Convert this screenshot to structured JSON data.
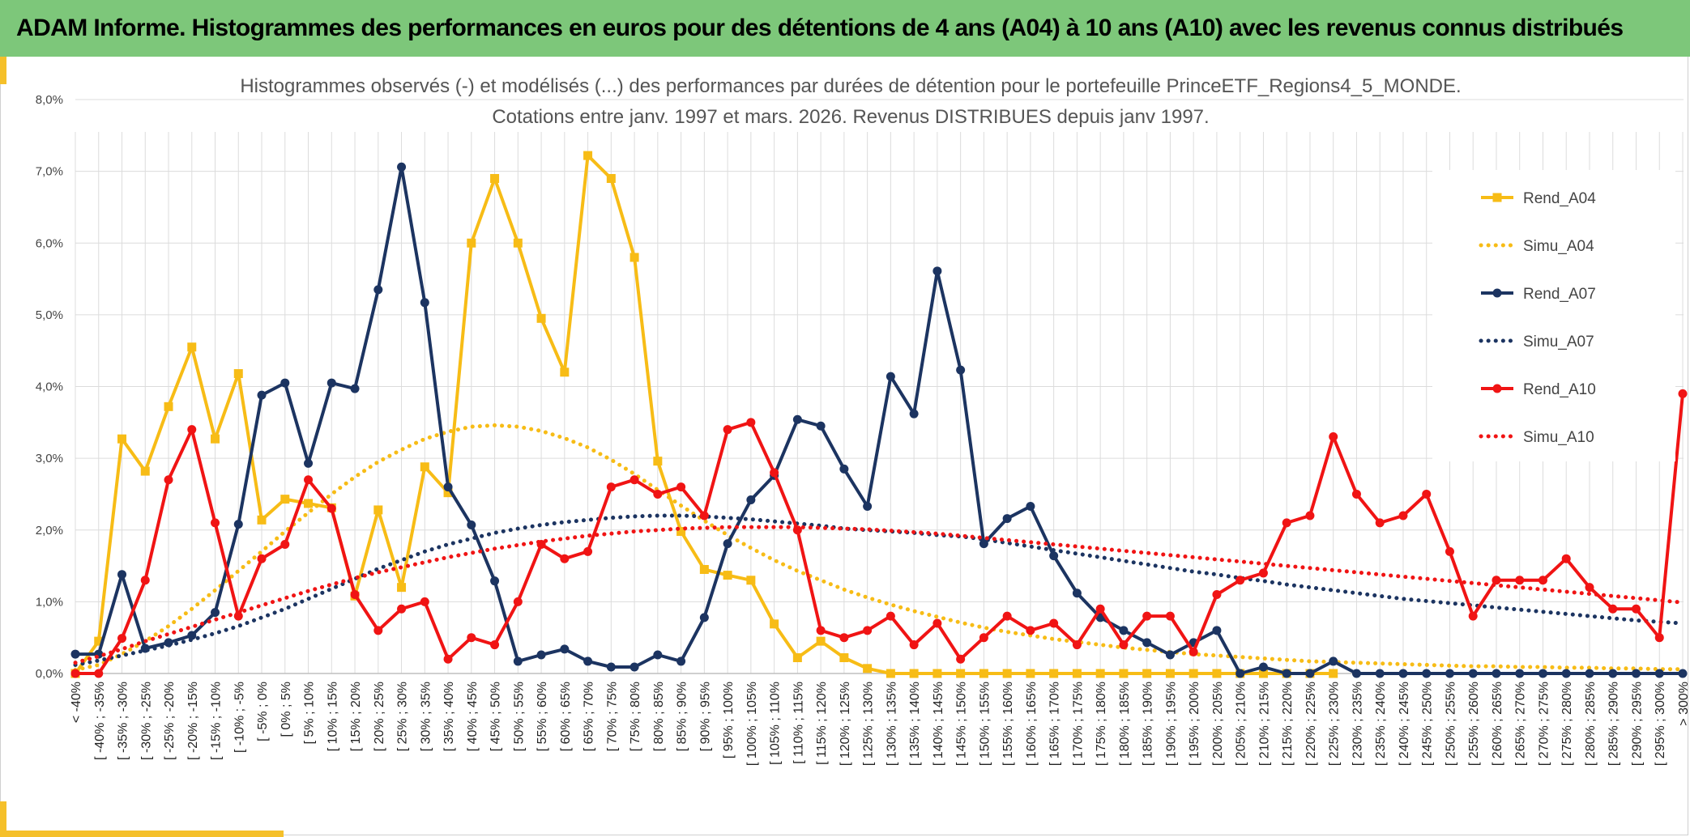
{
  "header": {
    "title": "ADAM Informe. Histogrammes des performances en euros pour des détentions de 4 ans (A04) à 10 ans (A10) avec les revenus connus distribués"
  },
  "colors": {
    "banner": "#7dc77a",
    "accent": "#f5c02a",
    "a04": "#f7bc16",
    "a07": "#1c3461",
    "a10": "#f01414",
    "grid": "#dcdcdc"
  },
  "chart_data": {
    "type": "line",
    "title": "Histogrammes observés (-) et modélisés (...) des performances par durées de détention pour le portefeuille PrinceETF_Regions4_5_MONDE.",
    "subtitle": "Cotations entre janv. 1997 et mars. 2026. Revenus DISTRIBUES depuis janv 1997.",
    "legend_position": "right",
    "grid": true,
    "ylim": [
      0,
      8
    ],
    "y_ticks": [
      0,
      1,
      2,
      3,
      4,
      5,
      6,
      7,
      8
    ],
    "y_tick_labels": [
      "0,0%",
      "1,0%",
      "2,0%",
      "3,0%",
      "4,0%",
      "5,0%",
      "6,0%",
      "7,0%",
      "8,0%"
    ],
    "categories": [
      "< -40%",
      "[ -40% ; -35%",
      "[ -35% ; -30%",
      "[ -30% ; -25%",
      "[ -25% ; -20%",
      "[ -20% ; -15%",
      "[ -15% ; -10%",
      "[ -10% ; -5%",
      "[ -5% ; 0%",
      "[ 0% ; 5%",
      "[ 5% ; 10%",
      "[ 10% ; 15%",
      "[ 15% ; 20%",
      "[ 20% ; 25%",
      "[ 25% ; 30%",
      "[ 30% ; 35%",
      "[ 35% ; 40%",
      "[ 40% ; 45%",
      "[ 45% ; 50%",
      "[ 50% ; 55%",
      "[ 55% ; 60%",
      "[ 60% ; 65%",
      "[ 65% ; 70%",
      "[ 70% ; 75%",
      "[ 75% ; 80%",
      "[ 80% ; 85%",
      "[ 85% ; 90%",
      "[ 90% ; 95%",
      "[ 95% ; 100%",
      "[ 100% ; 105%",
      "[ 105% ; 110%",
      "[ 110% ; 115%",
      "[ 115% ; 120%",
      "[ 120% ; 125%",
      "[ 125% ; 130%",
      "[ 130% ; 135%",
      "[ 135% ; 140%",
      "[ 140% ; 145%",
      "[ 145% ; 150%",
      "[ 150% ; 155%",
      "[ 155% ; 160%",
      "[ 160% ; 165%",
      "[ 165% ; 170%",
      "[ 170% ; 175%",
      "[ 175% ; 180%",
      "[ 180% ; 185%",
      "[ 185% ; 190%",
      "[ 190% ; 195%",
      "[ 195% ; 200%",
      "[ 200% ; 205%",
      "[ 205% ; 210%",
      "[ 210% ; 215%",
      "[ 215% ; 220%",
      "[ 220% ; 225%",
      "[ 225% ; 230%",
      "[ 230% ; 235%",
      "[ 235% ; 240%",
      "[ 240% ; 245%",
      "[ 245% ; 250%",
      "[ 250% ; 255%",
      "[ 255% ; 260%",
      "[ 260% ; 265%",
      "[ 265% ; 270%",
      "[ 270% ; 275%",
      "[ 275% ; 280%",
      "[ 280% ; 285%",
      "[ 285% ; 290%",
      "[ 290% ; 295%",
      "[ 295% ; 300%",
      "> 300%"
    ],
    "series": [
      {
        "name": "Rend_A04",
        "style": "solid",
        "marker": "square",
        "color": "#f7bc16",
        "values": [
          0.0,
          0.45,
          3.27,
          2.82,
          3.72,
          4.55,
          3.27,
          4.18,
          2.14,
          2.43,
          2.37,
          2.31,
          1.08,
          2.28,
          1.2,
          2.88,
          2.52,
          6.0,
          6.9,
          6.0,
          4.95,
          4.2,
          7.22,
          6.9,
          5.8,
          2.96,
          1.98,
          1.45,
          1.37,
          1.3,
          0.69,
          0.22,
          0.45,
          0.22,
          0.07,
          0,
          0,
          0,
          0,
          0,
          0,
          0,
          0,
          0,
          0,
          0,
          0,
          0,
          0,
          0,
          0,
          0,
          0,
          0,
          0,
          null,
          null,
          null,
          null,
          null,
          null,
          null,
          null,
          null,
          null,
          null,
          null,
          null,
          null,
          null
        ]
      },
      {
        "name": "Simu_A04",
        "style": "dotted",
        "color": "#f7bc16",
        "values": [
          0.05,
          0.12,
          0.27,
          0.45,
          0.66,
          0.9,
          1.16,
          1.43,
          1.7,
          1.98,
          2.24,
          2.5,
          2.74,
          2.95,
          3.12,
          3.27,
          3.37,
          3.44,
          3.46,
          3.44,
          3.38,
          3.28,
          3.15,
          2.98,
          2.78,
          2.56,
          2.34,
          2.13,
          1.93,
          1.75,
          1.58,
          1.43,
          1.3,
          1.17,
          1.06,
          0.96,
          0.87,
          0.79,
          0.71,
          0.64,
          0.58,
          0.53,
          0.48,
          0.44,
          0.4,
          0.36,
          0.33,
          0.3,
          0.27,
          0.25,
          0.23,
          0.21,
          0.19,
          0.17,
          0.16,
          0.15,
          0.14,
          0.13,
          0.12,
          0.11,
          0.1,
          0.1,
          0.09,
          0.09,
          0.08,
          0.08,
          0.07,
          0.07,
          0.06,
          0.06
        ]
      },
      {
        "name": "Rend_A07",
        "style": "solid",
        "marker": "circle",
        "color": "#1c3461",
        "values": [
          0.27,
          0.27,
          1.38,
          0.35,
          0.43,
          0.53,
          0.85,
          2.08,
          3.88,
          4.05,
          2.93,
          4.05,
          3.97,
          5.35,
          7.06,
          5.17,
          2.6,
          2.07,
          1.29,
          0.17,
          0.26,
          0.34,
          0.17,
          0.09,
          0.09,
          0.26,
          0.17,
          0.78,
          1.81,
          2.42,
          2.76,
          3.54,
          3.45,
          2.85,
          2.33,
          4.14,
          3.62,
          5.61,
          4.23,
          1.81,
          2.16,
          2.33,
          1.64,
          1.12,
          0.78,
          0.6,
          0.43,
          0.26,
          0.43,
          0.6,
          0,
          0.09,
          0,
          0,
          0.17,
          0,
          0,
          0,
          0,
          0,
          0,
          0,
          0,
          0,
          0,
          0,
          0,
          0,
          0,
          0
        ]
      },
      {
        "name": "Simu_A07",
        "style": "dotted",
        "color": "#1c3461",
        "values": [
          0.12,
          0.18,
          0.25,
          0.32,
          0.39,
          0.47,
          0.56,
          0.66,
          0.78,
          0.9,
          1.04,
          1.18,
          1.32,
          1.46,
          1.58,
          1.7,
          1.8,
          1.88,
          1.96,
          2.02,
          2.07,
          2.11,
          2.14,
          2.17,
          2.19,
          2.2,
          2.2,
          2.19,
          2.17,
          2.15,
          2.12,
          2.09,
          2.06,
          2.02,
          2.0,
          1.98,
          1.96,
          1.93,
          1.91,
          1.87,
          1.82,
          1.77,
          1.72,
          1.67,
          1.62,
          1.57,
          1.52,
          1.47,
          1.42,
          1.38,
          1.33,
          1.29,
          1.24,
          1.2,
          1.16,
          1.12,
          1.08,
          1.04,
          1.01,
          0.98,
          0.95,
          0.92,
          0.89,
          0.86,
          0.83,
          0.8,
          0.77,
          0.74,
          0.72,
          0.7
        ]
      },
      {
        "name": "Rend_A10",
        "style": "solid",
        "marker": "circle",
        "color": "#f01414",
        "values": [
          0,
          0,
          0.49,
          1.3,
          2.7,
          3.4,
          2.1,
          0.8,
          1.6,
          1.8,
          2.7,
          2.3,
          1.1,
          0.6,
          0.9,
          1.0,
          0.2,
          0.5,
          0.4,
          1.0,
          1.8,
          1.6,
          1.7,
          2.6,
          2.7,
          2.5,
          2.6,
          2.2,
          3.4,
          3.5,
          2.8,
          2.0,
          0.6,
          0.5,
          0.6,
          0.8,
          0.4,
          0.7,
          0.2,
          0.5,
          0.8,
          0.6,
          0.7,
          0.4,
          0.9,
          0.4,
          0.8,
          0.8,
          0.3,
          1.1,
          1.3,
          1.4,
          2.1,
          2.2,
          3.3,
          2.5,
          2.1,
          2.2,
          2.5,
          1.7,
          0.8,
          1.3,
          1.3,
          1.3,
          1.6,
          1.2,
          0.9,
          0.9,
          0.5,
          3.9
        ]
      },
      {
        "name": "Simu_A10",
        "style": "dotted",
        "color": "#f01414",
        "values": [
          0.15,
          0.24,
          0.34,
          0.45,
          0.55,
          0.65,
          0.75,
          0.85,
          0.95,
          1.05,
          1.15,
          1.24,
          1.33,
          1.41,
          1.48,
          1.55,
          1.62,
          1.68,
          1.74,
          1.79,
          1.84,
          1.88,
          1.92,
          1.95,
          1.98,
          2.0,
          2.02,
          2.03,
          2.04,
          2.04,
          2.04,
          2.04,
          2.03,
          2.02,
          2.01,
          1.99,
          1.97,
          1.95,
          1.92,
          1.89,
          1.86,
          1.83,
          1.8,
          1.77,
          1.74,
          1.71,
          1.68,
          1.65,
          1.62,
          1.59,
          1.56,
          1.53,
          1.5,
          1.47,
          1.44,
          1.41,
          1.38,
          1.35,
          1.32,
          1.29,
          1.26,
          1.23,
          1.2,
          1.17,
          1.14,
          1.11,
          1.08,
          1.05,
          1.02,
          0.99
        ]
      }
    ]
  }
}
